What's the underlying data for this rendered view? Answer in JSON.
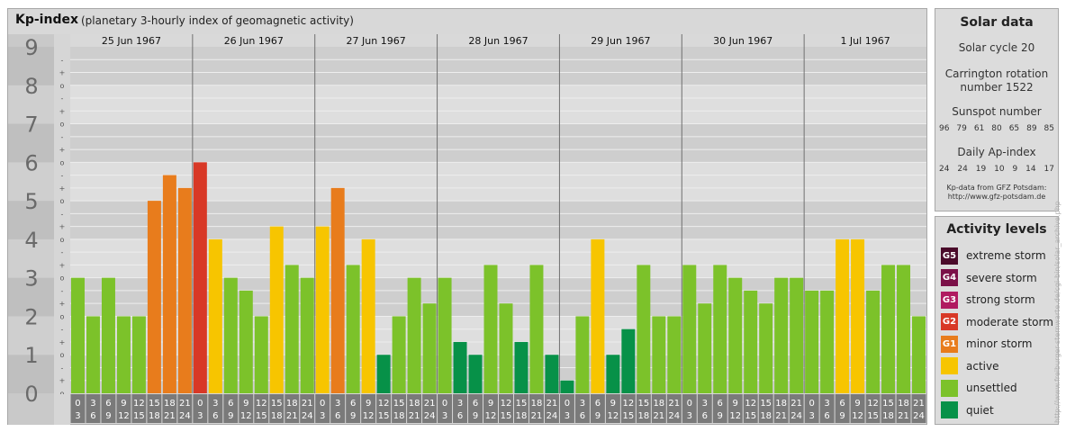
{
  "header": {
    "title": "Kp-index",
    "subtitle": "(planetary 3-hourly index of geomagnetic activity)"
  },
  "solar_data": {
    "title": "Solar data",
    "cycle": "Solar cycle 20",
    "carrington_line1": "Carrington rotation",
    "carrington_line2": "number 1522",
    "sunspot_title": "Sunspot number",
    "sunspot_values": [
      "96",
      "79",
      "61",
      "80",
      "65",
      "89",
      "85"
    ],
    "ap_title": "Daily Ap-index",
    "ap_values": [
      "24",
      "24",
      "19",
      "10",
      "9",
      "14",
      "17"
    ],
    "source_line1": "Kp-data from GFZ Potsdam:",
    "source_line2": "http://www.gfz-potsdam.de"
  },
  "legend": {
    "title": "Activity levels",
    "items": [
      {
        "badge": "G5",
        "label": "extreme storm",
        "color": "#4a0a2a"
      },
      {
        "badge": "G4",
        "label": "severe storm",
        "color": "#7b1048"
      },
      {
        "badge": "G3",
        "label": "strong storm",
        "color": "#b01a60"
      },
      {
        "badge": "G2",
        "label": "moderate storm",
        "color": "#d83826"
      },
      {
        "badge": "G1",
        "label": "minor storm",
        "color": "#e87c1c"
      },
      {
        "badge": "",
        "label": "active",
        "color": "#f7c500"
      },
      {
        "badge": "",
        "label": "unsettled",
        "color": "#7cc22a"
      },
      {
        "badge": "",
        "label": "quiet",
        "color": "#079148"
      }
    ]
  },
  "watermark": "http://www.freiburger-sternwarte.de/cgi-bin/solar_archive.php",
  "chart_data": {
    "type": "bar",
    "ylim": [
      0,
      9
    ],
    "y_ticks": [
      "0",
      "1",
      "2",
      "3",
      "4",
      "5",
      "6",
      "7",
      "8",
      "9"
    ],
    "y_minor_marks": [
      "+",
      "o",
      "-"
    ],
    "days": [
      "25 Jun 1967",
      "26 Jun 1967",
      "27 Jun 1967",
      "28 Jun 1967",
      "29 Jun 1967",
      "30 Jun 1967",
      "1 Jul 1967"
    ],
    "interval_starts": [
      "0",
      "3",
      "6",
      "9",
      "12",
      "15",
      "18",
      "21"
    ],
    "interval_ends": [
      "3",
      "6",
      "9",
      "12",
      "15",
      "18",
      "21",
      "24"
    ],
    "values": [
      3.0,
      2.0,
      3.0,
      2.0,
      2.0,
      5.0,
      5.667,
      5.333,
      6.0,
      4.0,
      3.0,
      2.667,
      2.0,
      4.333,
      3.333,
      3.0,
      4.333,
      5.333,
      3.333,
      4.0,
      1.0,
      2.0,
      3.0,
      2.333,
      3.0,
      1.333,
      1.0,
      3.333,
      2.333,
      1.333,
      3.333,
      1.0,
      0.333,
      2.0,
      4.0,
      1.0,
      1.667,
      3.333,
      2.0,
      2.0,
      3.333,
      2.333,
      3.333,
      3.0,
      2.667,
      2.333,
      3.0,
      3.0,
      2.667,
      2.667,
      4.0,
      4.0,
      2.667,
      3.333,
      3.333,
      2.0
    ],
    "colors": {
      "quiet": "#079148",
      "unsettled": "#7cc22a",
      "active": "#f7c500",
      "G1": "#e87c1c",
      "G2": "#d83826"
    },
    "grid": true
  }
}
